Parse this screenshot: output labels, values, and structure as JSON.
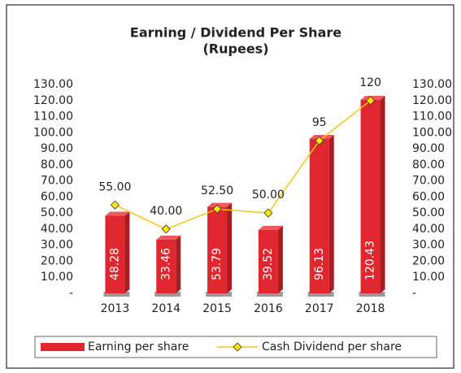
{
  "chart_data": {
    "type": "bar-line",
    "title": "Earning / Dividend Per Share",
    "subtitle": "(Rupees)",
    "categories": [
      "2013",
      "2014",
      "2015",
      "2016",
      "2017",
      "2018"
    ],
    "series": [
      {
        "name": "Earning per share",
        "type": "bar",
        "color": "#e0262e",
        "values": [
          48.28,
          33.46,
          53.79,
          39.52,
          96.13,
          120.43
        ]
      },
      {
        "name": "Cash Dividend per share",
        "type": "line",
        "axis": "y2",
        "color": "#f5c518",
        "values": [
          55,
          40,
          52.5,
          50,
          95,
          120
        ],
        "value_labels": [
          "55.00",
          "40.00",
          "52.50",
          "50.00",
          "95",
          "120"
        ]
      }
    ],
    "ylim": [
      0,
      130
    ],
    "yticks": [
      {
        "value": 0,
        "label": "-"
      },
      {
        "value": 10,
        "label": "10.00"
      },
      {
        "value": 20,
        "label": "20.00"
      },
      {
        "value": 30,
        "label": "30.00"
      },
      {
        "value": 40,
        "label": "40.00"
      },
      {
        "value": 50,
        "label": "50.00"
      },
      {
        "value": 60,
        "label": "60.00"
      },
      {
        "value": 70,
        "label": "70.00"
      },
      {
        "value": 80,
        "label": "80.00"
      },
      {
        "value": 90,
        "label": "90.00"
      },
      {
        "value": 100,
        "label": "100.00"
      },
      {
        "value": 110,
        "label": "110.00"
      },
      {
        "value": 120,
        "label": "120.00"
      },
      {
        "value": 130,
        "label": "130.00"
      }
    ],
    "y2lim": [
      0,
      130
    ],
    "y2ticks": [
      {
        "value": 0,
        "label": "-"
      },
      {
        "value": 10,
        "label": "10.00"
      },
      {
        "value": 20,
        "label": "20.00"
      },
      {
        "value": 30,
        "label": "30.00"
      },
      {
        "value": 40,
        "label": "40.00"
      },
      {
        "value": 50,
        "label": "50.00"
      },
      {
        "value": 60,
        "label": "60.00"
      },
      {
        "value": 70,
        "label": "70.00"
      },
      {
        "value": 80,
        "label": "80.00"
      },
      {
        "value": 90,
        "label": "90.00"
      },
      {
        "value": 100,
        "label": "100.00"
      },
      {
        "value": 110,
        "label": "110.00"
      },
      {
        "value": 120,
        "label": "120.00"
      },
      {
        "value": 130,
        "label": "130.00"
      }
    ],
    "grid": false,
    "legend": "bottom"
  }
}
